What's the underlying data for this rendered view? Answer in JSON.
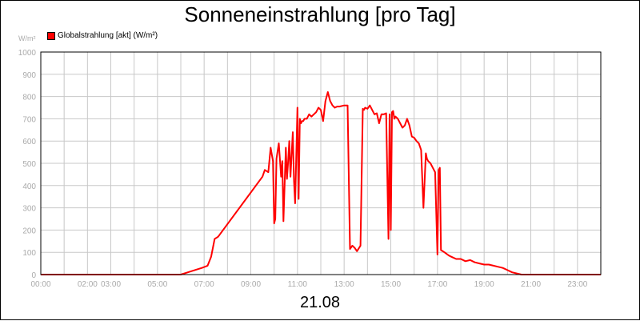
{
  "chart_data": {
    "type": "line",
    "title": "Sonneneinstrahlung [pro Tag]",
    "ylabel": "W/m²",
    "xlabel": "21.08",
    "ylim": [
      0,
      1000
    ],
    "xlim": [
      0,
      24
    ],
    "yticks": [
      "0",
      "100",
      "200",
      "300",
      "400",
      "500",
      "600",
      "700",
      "800",
      "900",
      "1000"
    ],
    "xticks": [
      {
        "h": 0,
        "label": "00:00"
      },
      {
        "h": 2,
        "label": "02:00"
      },
      {
        "h": 3,
        "label": "03:00"
      },
      {
        "h": 5,
        "label": "05:00"
      },
      {
        "h": 7,
        "label": "07:00"
      },
      {
        "h": 9,
        "label": "09:00"
      },
      {
        "h": 11,
        "label": "11:00"
      },
      {
        "h": 13,
        "label": "13:00"
      },
      {
        "h": 15,
        "label": "15:00"
      },
      {
        "h": 17,
        "label": "17:00"
      },
      {
        "h": 19,
        "label": "19:00"
      },
      {
        "h": 21,
        "label": "21:00"
      },
      {
        "h": 23,
        "label": "23:00"
      }
    ],
    "grid": true,
    "legend_position": "top-left",
    "series": [
      {
        "name": "Globalstrahlung [akt] (W/m²)",
        "color": "#ff0000",
        "x": [
          0,
          6.0,
          6.3,
          6.6,
          6.9,
          7.15,
          7.3,
          7.45,
          7.6,
          9.5,
          9.6,
          9.75,
          9.85,
          9.95,
          10.0,
          10.05,
          10.1,
          10.2,
          10.3,
          10.35,
          10.4,
          10.5,
          10.55,
          10.6,
          10.65,
          10.7,
          10.8,
          10.85,
          10.9,
          11.0,
          11.05,
          11.1,
          11.15,
          11.2,
          11.25,
          11.3,
          11.4,
          11.5,
          11.6,
          11.7,
          11.8,
          11.9,
          12.0,
          12.1,
          12.2,
          12.3,
          12.4,
          12.5,
          12.6,
          12.7,
          12.8,
          13.0,
          13.15,
          13.25,
          13.35,
          13.45,
          13.55,
          13.7,
          13.8,
          13.85,
          13.9,
          14.0,
          14.1,
          14.2,
          14.3,
          14.4,
          14.5,
          14.6,
          14.7,
          14.8,
          14.9,
          14.95,
          15.0,
          15.05,
          15.1,
          15.15,
          15.2,
          15.3,
          15.4,
          15.5,
          15.6,
          15.7,
          15.8,
          15.9,
          16.0,
          16.1,
          16.2,
          16.3,
          16.4,
          16.5,
          16.55,
          16.6,
          16.7,
          16.8,
          16.9,
          17.0,
          17.05,
          17.1,
          17.15,
          17.3,
          17.5,
          17.6,
          17.8,
          18.0,
          18.2,
          18.4,
          18.6,
          18.8,
          19.0,
          19.2,
          19.4,
          19.6,
          19.8,
          20.0,
          20.2,
          20.4,
          20.6,
          20.8,
          21.0,
          24.0
        ],
        "y": [
          0,
          0,
          10,
          20,
          30,
          40,
          80,
          160,
          170,
          440,
          470,
          460,
          570,
          510,
          230,
          250,
          520,
          590,
          440,
          510,
          240,
          570,
          430,
          510,
          600,
          440,
          640,
          420,
          320,
          750,
          340,
          700,
          680,
          690,
          690,
          700,
          700,
          720,
          710,
          720,
          730,
          750,
          740,
          690,
          780,
          820,
          780,
          760,
          750,
          755,
          755,
          760,
          760,
          115,
          130,
          120,
          105,
          130,
          745,
          740,
          750,
          745,
          760,
          740,
          720,
          725,
          680,
          720,
          720,
          725,
          160,
          720,
          200,
          730,
          735,
          700,
          710,
          700,
          680,
          660,
          670,
          700,
          670,
          620,
          615,
          600,
          590,
          560,
          300,
          545,
          520,
          510,
          500,
          480,
          460,
          90,
          470,
          480,
          110,
          100,
          85,
          80,
          70,
          70,
          60,
          65,
          55,
          50,
          45,
          45,
          40,
          35,
          30,
          20,
          10,
          5,
          0,
          0,
          0,
          0
        ]
      }
    ]
  }
}
